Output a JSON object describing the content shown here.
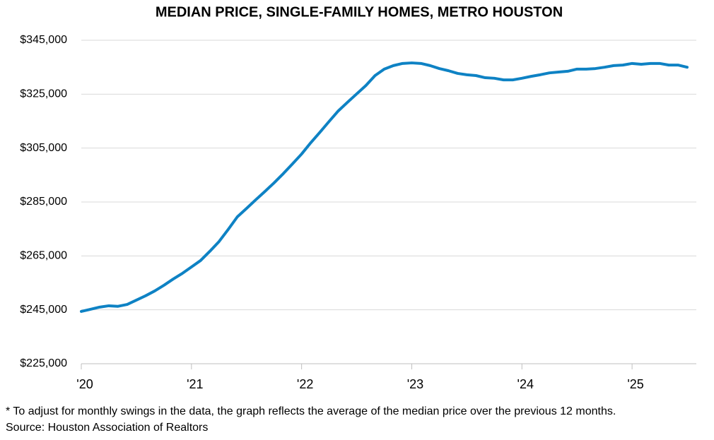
{
  "chart_data": {
    "type": "line",
    "title": "MEDIAN PRICE, SINGLE-FAMILY HOMES, METRO HOUSTON",
    "footnote": "* To adjust for monthly swings in the data,  the graph reflects the average of the median price over the previous 12 months.",
    "source": "Source: Houston Association of Realtors",
    "categories": [
      "'20",
      null,
      null,
      null,
      null,
      null,
      null,
      null,
      null,
      null,
      null,
      null,
      "'21",
      null,
      null,
      null,
      null,
      null,
      null,
      null,
      null,
      null,
      null,
      null,
      "'22",
      null,
      null,
      null,
      null,
      null,
      null,
      null,
      null,
      null,
      null,
      null,
      "'23",
      null,
      null,
      null,
      null,
      null,
      null,
      null,
      null,
      null,
      null,
      null,
      "'24",
      null,
      null,
      null,
      null,
      null,
      null,
      null,
      null,
      null,
      null,
      null,
      "'25",
      null,
      null,
      null,
      null,
      null,
      null
    ],
    "series": [
      {
        "name": "Median price",
        "color": "#0e82c4",
        "values": [
          244400,
          245200,
          246000,
          246500,
          246300,
          247000,
          248600,
          250200,
          252000,
          254100,
          256400,
          258500,
          260900,
          263300,
          266700,
          270300,
          274800,
          279500,
          282600,
          285800,
          288900,
          292100,
          295500,
          299100,
          302800,
          307000,
          310900,
          314900,
          318800,
          322000,
          325100,
          328200,
          331900,
          334300,
          335600,
          336400,
          336600,
          336400,
          335600,
          334500,
          333700,
          332700,
          332200,
          331900,
          331100,
          330900,
          330300,
          330300,
          330900,
          331600,
          332200,
          332900,
          333200,
          333500,
          334300,
          334300,
          334500,
          335000,
          335600,
          335800,
          336400,
          336100,
          336400,
          336400,
          335800,
          335800,
          335000
        ]
      }
    ],
    "ylim": [
      225000,
      345000
    ],
    "yticks": [
      {
        "value": 225000,
        "label": "$225,000"
      },
      {
        "value": 245000,
        "label": "$245,000"
      },
      {
        "value": 265000,
        "label": "$265,000"
      },
      {
        "value": 285000,
        "label": "$285,000"
      },
      {
        "value": 305000,
        "label": "$305,000"
      },
      {
        "value": 325000,
        "label": "$325,000"
      },
      {
        "value": 345000,
        "label": "$345,000"
      }
    ],
    "grid": true
  }
}
